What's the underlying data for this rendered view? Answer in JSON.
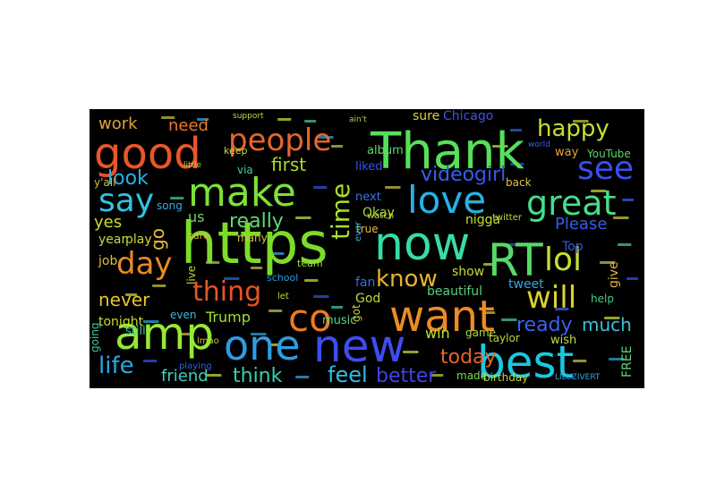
{
  "palette": {
    "background": "#000000",
    "page": "#ffffff"
  },
  "words": [
    {
      "text": "https",
      "color": "#7cdc2a"
    },
    {
      "text": "Thank",
      "color": "#55e05a"
    },
    {
      "text": "good",
      "color": "#e8562a"
    },
    {
      "text": "now",
      "color": "#38dba8"
    },
    {
      "text": "RT",
      "color": "#58d968"
    },
    {
      "text": "amp",
      "color": "#96e834"
    },
    {
      "text": "one",
      "color": "#2e9ce4"
    },
    {
      "text": "new",
      "color": "#3d4df2"
    },
    {
      "text": "best",
      "color": "#19c8e2"
    },
    {
      "text": "want",
      "color": "#ed8b26"
    },
    {
      "text": "make",
      "color": "#7ae238"
    },
    {
      "text": "love",
      "color": "#27b0e5"
    },
    {
      "text": "people",
      "color": "#e8652c"
    },
    {
      "text": "co",
      "color": "#ed7a22"
    },
    {
      "text": "see",
      "color": "#3a4fec"
    },
    {
      "text": "great",
      "color": "#45dd8a"
    },
    {
      "text": "say",
      "color": "#30c4e6"
    },
    {
      "text": "day",
      "color": "#ea8a23"
    },
    {
      "text": "lol",
      "color": "#c5e031"
    },
    {
      "text": "will",
      "color": "#dcd030"
    },
    {
      "text": "happy",
      "color": "#c8de2c"
    },
    {
      "text": "know",
      "color": "#e5b428"
    },
    {
      "text": "thing",
      "color": "#e8532a"
    },
    {
      "text": "time",
      "color": "#a5e12c"
    },
    {
      "text": "life",
      "color": "#28a8e4"
    },
    {
      "text": "really",
      "color": "#5fd872"
    },
    {
      "text": "video",
      "color": "#3263ea"
    },
    {
      "text": "girl",
      "color": "#3a55ea"
    },
    {
      "text": "look",
      "color": "#2aaee6"
    },
    {
      "text": "first",
      "color": "#a8da2e"
    },
    {
      "text": "ready",
      "color": "#3464ea"
    },
    {
      "text": "think",
      "color": "#36cfae"
    },
    {
      "text": "feel",
      "color": "#30bde2"
    },
    {
      "text": "today",
      "color": "#e8632a"
    },
    {
      "text": "better",
      "color": "#3f43ee"
    },
    {
      "text": "friend",
      "color": "#38d4c0"
    },
    {
      "text": "never",
      "color": "#e5c62e"
    },
    {
      "text": "much",
      "color": "#3cc0de"
    },
    {
      "text": "Trump",
      "color": "#9ee032"
    },
    {
      "text": "Please",
      "color": "#3a5ae8"
    },
    {
      "text": "work",
      "color": "#e0a432"
    },
    {
      "text": "need",
      "color": "#ea7a2a"
    },
    {
      "text": "yes",
      "color": "#c8de2c"
    },
    {
      "text": "go",
      "color": "#e8c030"
    },
    {
      "text": "us",
      "color": "#70d860"
    },
    {
      "text": "Chicago",
      "color": "#4050e8"
    },
    {
      "text": "sure",
      "color": "#d8d438"
    },
    {
      "text": "tonight",
      "color": "#c5de2e"
    },
    {
      "text": "beautiful",
      "color": "#5acf80"
    },
    {
      "text": "tweet",
      "color": "#30a6e0"
    },
    {
      "text": "show",
      "color": "#c8d83a"
    },
    {
      "text": "Top",
      "color": "#3a58e8"
    },
    {
      "text": "YouTube",
      "color": "#5fd470"
    },
    {
      "text": "nigga",
      "color": "#c2e030"
    },
    {
      "text": "Okay",
      "color": "#a8d83a"
    },
    {
      "text": "album",
      "color": "#60d872"
    },
    {
      "text": "liked",
      "color": "#3055e8"
    },
    {
      "text": "next",
      "color": "#3a72ea"
    },
    {
      "text": "back",
      "color": "#e8c040"
    },
    {
      "text": "way",
      "color": "#e8a530"
    },
    {
      "text": "year",
      "color": "#c8d844"
    },
    {
      "text": "play",
      "color": "#c8da32"
    },
    {
      "text": "song",
      "color": "#3caae0"
    },
    {
      "text": "job",
      "color": "#d8c238"
    },
    {
      "text": "win",
      "color": "#c5e032"
    },
    {
      "text": "made",
      "color": "#7ad84a"
    },
    {
      "text": "game",
      "color": "#b0dc3a"
    },
    {
      "text": "wish",
      "color": "#c5d846"
    },
    {
      "text": "fan",
      "color": "#3070e8"
    },
    {
      "text": "God",
      "color": "#c0dc34"
    },
    {
      "text": "still",
      "color": "#38c8b8"
    },
    {
      "text": "help",
      "color": "#40d088"
    },
    {
      "text": "give",
      "color": "#e0b040"
    },
    {
      "text": "taylor",
      "color": "#b8d840"
    },
    {
      "text": "birthday",
      "color": "#c0d838"
    },
    {
      "text": "FREE",
      "color": "#60d070"
    },
    {
      "text": "music",
      "color": "#58d880"
    },
    {
      "text": "even",
      "color": "#3cb8e0"
    },
    {
      "text": "live",
      "color": "#c4d840"
    },
    {
      "text": "keep",
      "color": "#c6dc38"
    },
    {
      "text": "via",
      "color": "#40d4a0"
    },
    {
      "text": "true",
      "color": "#e0c044"
    },
    {
      "text": "got",
      "color": "#c8d040"
    },
    {
      "text": "many",
      "color": "#d8c040"
    },
    {
      "text": "school",
      "color": "#2a9ae0"
    },
    {
      "text": "team",
      "color": "#a8d848"
    },
    {
      "text": "twitter",
      "color": "#c4d840"
    },
    {
      "text": "watch",
      "color": "#c2d83c"
    },
    {
      "text": "going",
      "color": "#40c8a0"
    },
    {
      "text": "playing",
      "color": "#3060e0"
    },
    {
      "text": "y'all",
      "color": "#c8c040"
    },
    {
      "text": "lmao",
      "color": "#c8c838"
    },
    {
      "text": "ever",
      "color": "#3aa8e0"
    },
    {
      "text": "care",
      "color": "#e0b440"
    },
    {
      "text": "let",
      "color": "#b8d840"
    },
    {
      "text": "little",
      "color": "#b4d048"
    },
    {
      "text": "support",
      "color": "#c4d838"
    },
    {
      "text": "ain't",
      "color": "#c0c848"
    },
    {
      "text": "world",
      "color": "#3a60e0"
    },
    {
      "text": "LILUZIVERT",
      "color": "#3aa0e0"
    }
  ]
}
